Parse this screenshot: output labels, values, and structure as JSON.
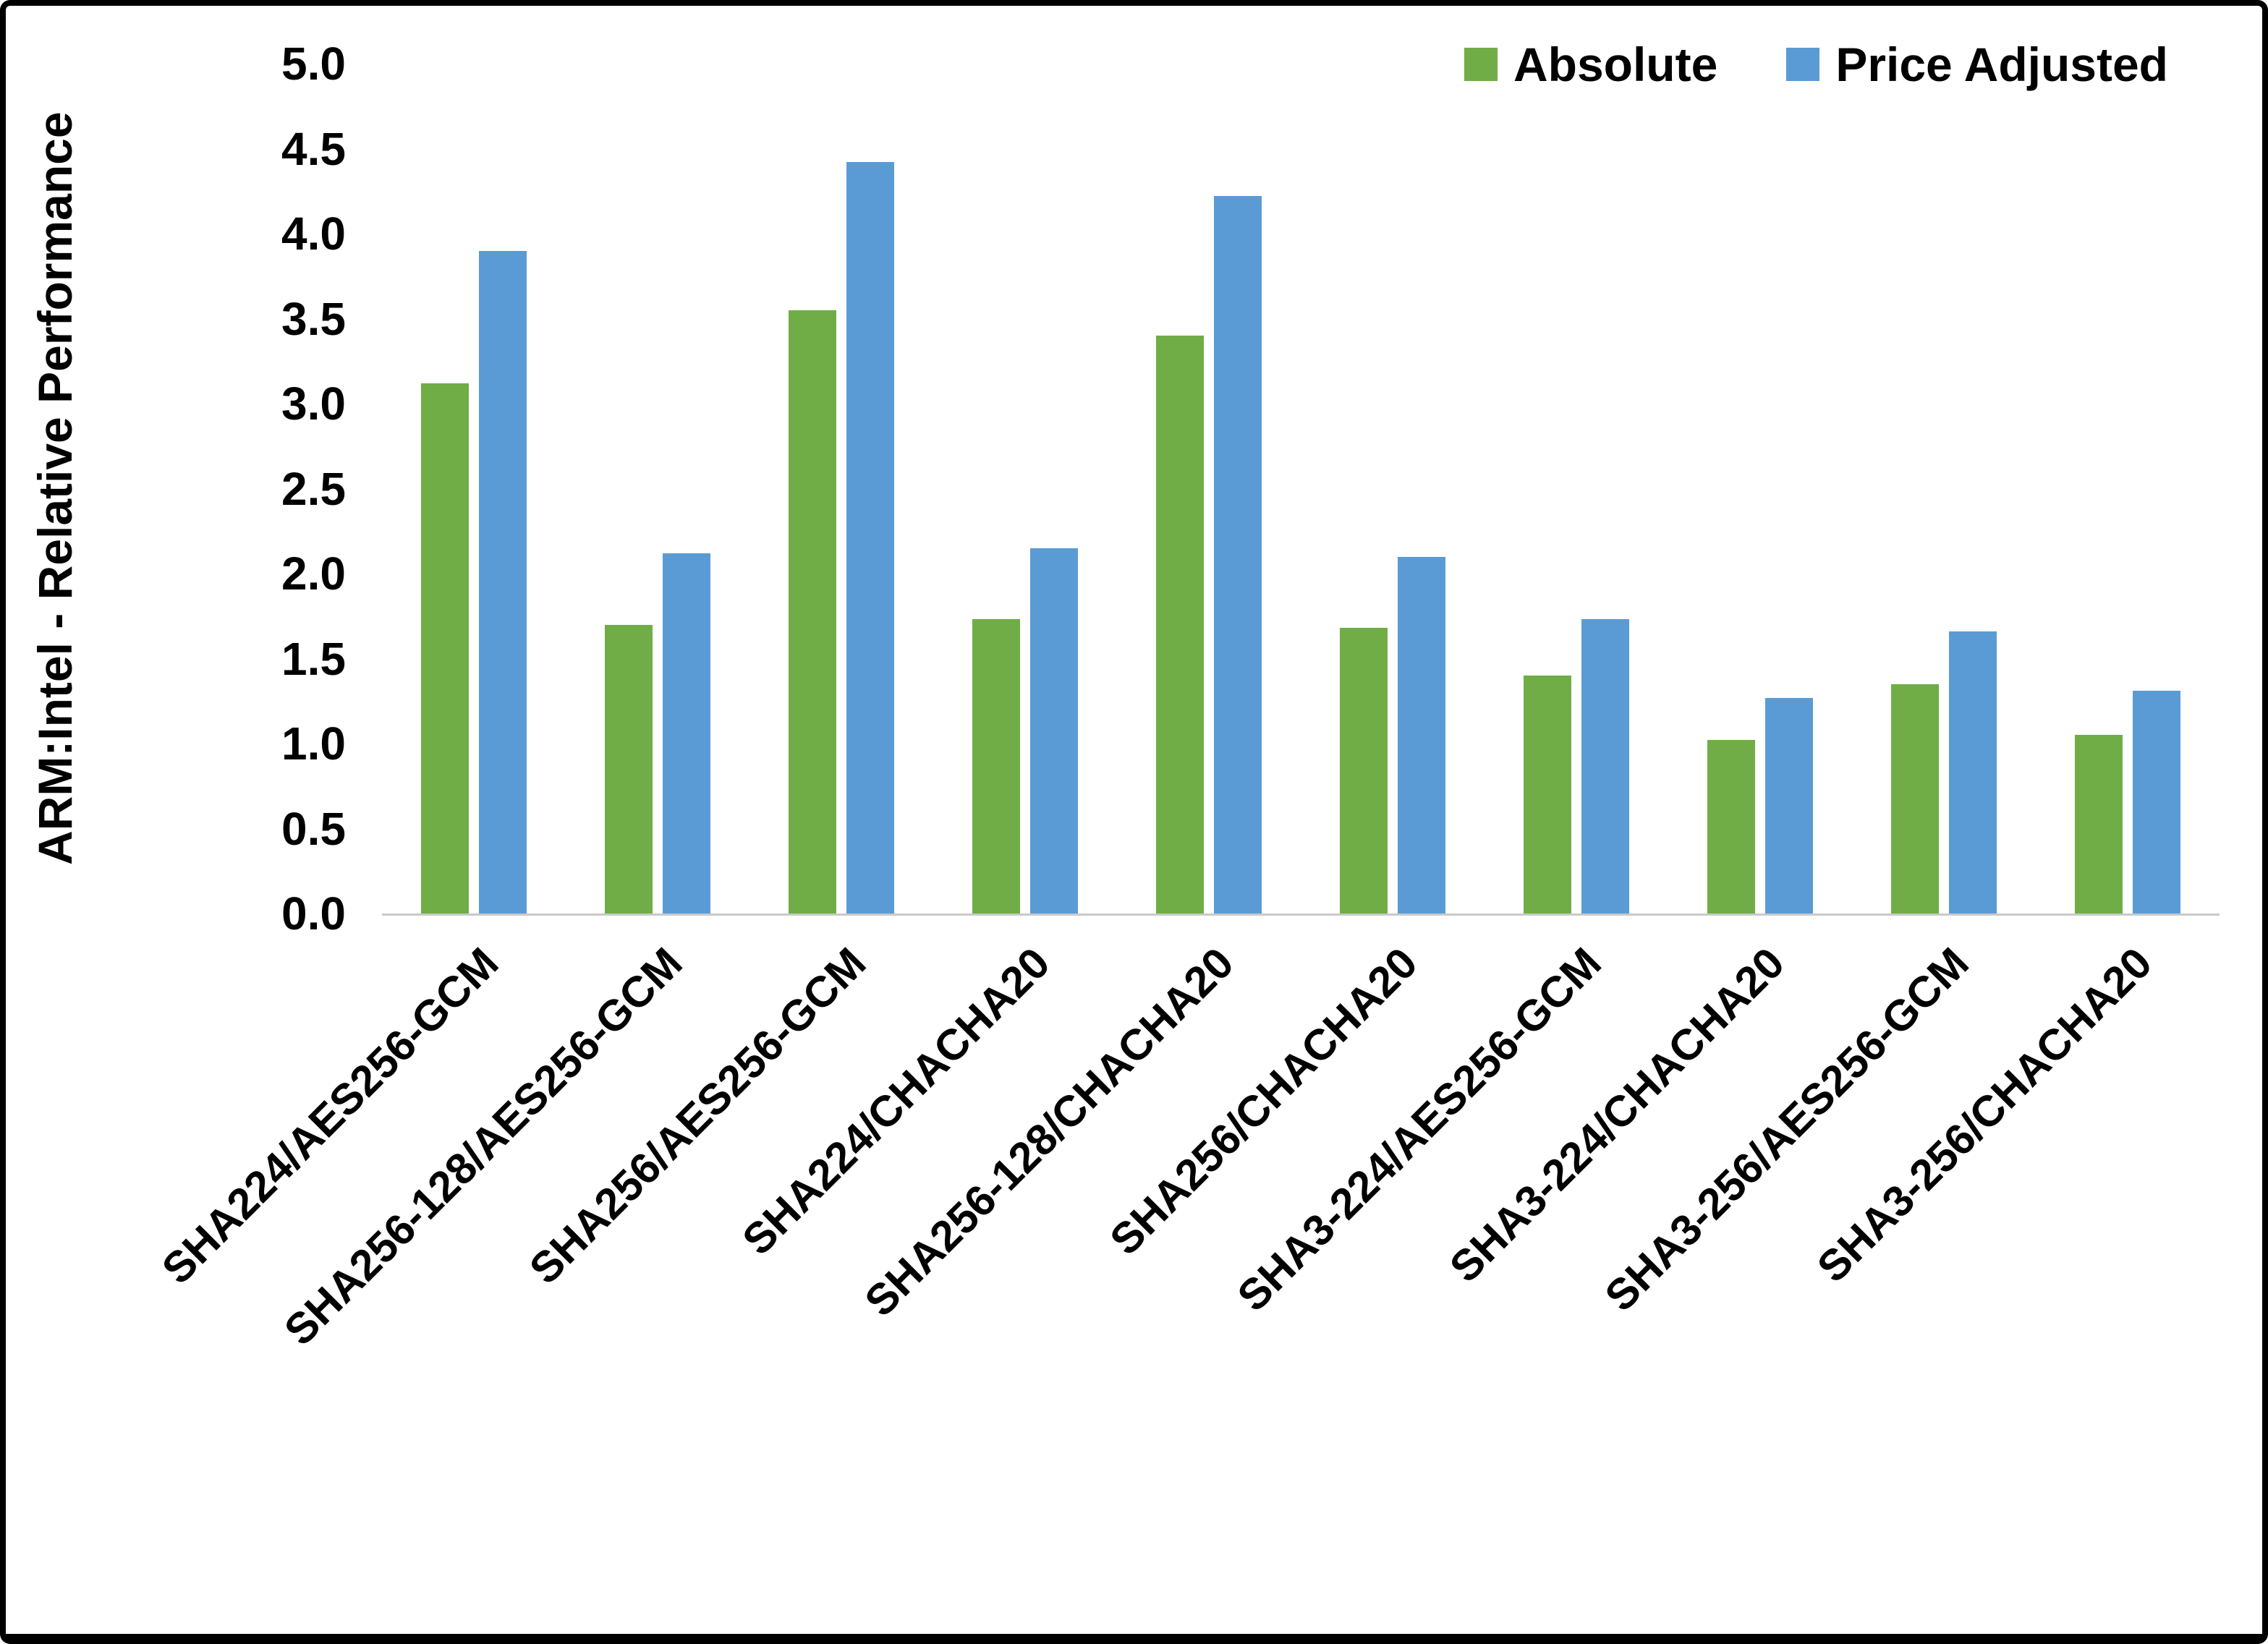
{
  "chart_data": {
    "type": "bar",
    "title": "",
    "xlabel": "",
    "ylabel": "ARM:Intel - Relative Performance",
    "ylim": [
      0,
      5
    ],
    "ytick_step": 0.5,
    "ytick_decimals": 1,
    "grid": false,
    "legend_position": "top-right",
    "categories": [
      "SHA224/AES256-GCM",
      "SHA256-128/AES256-GCM",
      "SHA256/AES256-GCM",
      "SHA224/CHACHA20",
      "SHA256-128/CHACHA20",
      "SHA256/CHACHA20",
      "SHA3-224/AES256-GCM",
      "SHA3-224/CHACHA20",
      "SHA3-256/AES256-GCM",
      "SHA3-256/CHACHA20"
    ],
    "series": [
      {
        "name": "Absolute",
        "color": "#70AD47",
        "values": [
          3.12,
          1.7,
          3.55,
          1.73,
          3.4,
          1.68,
          1.4,
          1.02,
          1.35,
          1.05
        ]
      },
      {
        "name": "Price Adjusted",
        "color": "#5B9BD5",
        "values": [
          3.9,
          2.12,
          4.42,
          2.15,
          4.22,
          2.1,
          1.73,
          1.27,
          1.66,
          1.31
        ]
      }
    ]
  }
}
